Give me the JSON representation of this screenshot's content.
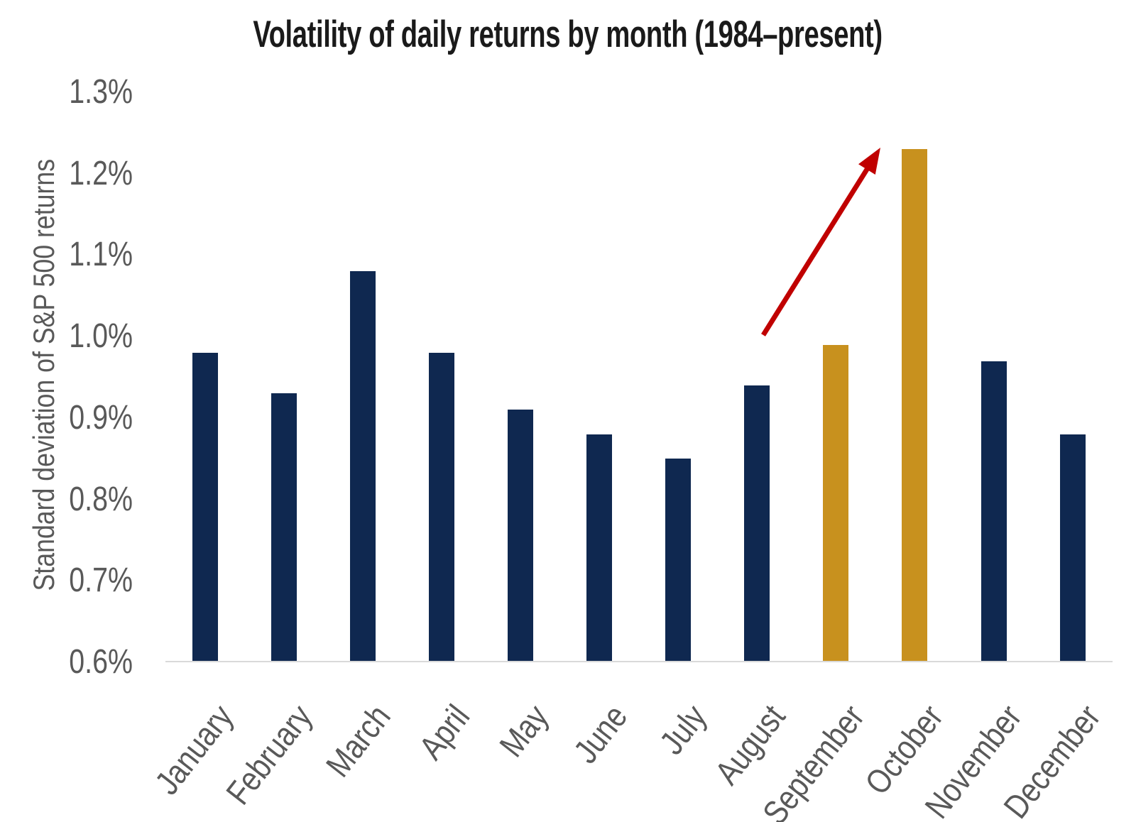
{
  "chart_data": {
    "type": "bar",
    "title": "Volatility of daily returns by month (1984–present)",
    "xlabel": "",
    "ylabel": "Standard deviation of S&P 500 returns",
    "categories": [
      "January",
      "February",
      "March",
      "April",
      "May",
      "June",
      "July",
      "August",
      "September",
      "October",
      "November",
      "December"
    ],
    "values": [
      0.98,
      0.93,
      1.08,
      0.98,
      0.91,
      0.88,
      0.85,
      0.94,
      0.99,
      1.23,
      0.97,
      0.88
    ],
    "value_unit": "%",
    "ylim": [
      0.6,
      1.3
    ],
    "yticks": [
      "1.3%",
      "1.2%",
      "1.1%",
      "1.0%",
      "0.9%",
      "0.8%",
      "0.7%",
      "0.6%"
    ],
    "grid": "none (baseline axis line only)",
    "legend": "none",
    "highlighted_categories": [
      "September",
      "October"
    ],
    "annotation": {
      "type": "arrow",
      "description": "red arrow pointing up-right toward the October bar top"
    },
    "colors": {
      "bar": "#0f2850",
      "highlight": "#c8911e",
      "arrow": "#c00000",
      "axis_text": "#595959",
      "axis_line": "#d9d9d9",
      "title_text": "#1a1a1a"
    }
  }
}
